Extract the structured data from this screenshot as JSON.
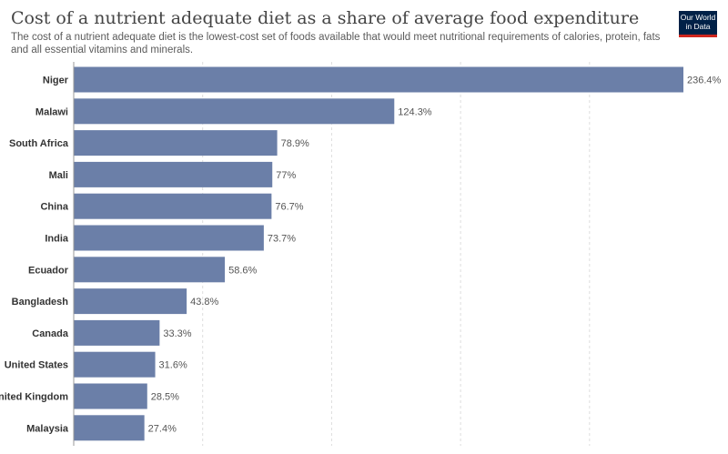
{
  "header": {
    "title": "Cost of a nutrient adequate diet as a share of average food expenditure",
    "subtitle": "The cost of a nutrient adequate diet is the lowest-cost set of foods available that would meet nutritional requirements of calories, protein, fats and all essential vitamins and minerals.",
    "logo_line1": "Our World",
    "logo_line2": "in Data"
  },
  "colors": {
    "bar": "#6b7fa8",
    "gridline": "#dddddd",
    "axis": "#999999"
  },
  "chart_data": {
    "type": "bar",
    "orientation": "horizontal",
    "categories": [
      "Niger",
      "Malawi",
      "South Africa",
      "Mali",
      "China",
      "India",
      "Ecuador",
      "Bangladesh",
      "Canada",
      "United States",
      "United Kingdom",
      "Malaysia"
    ],
    "values": [
      236.4,
      124.3,
      78.9,
      77,
      76.7,
      73.7,
      58.6,
      43.8,
      33.3,
      31.6,
      28.5,
      27.4
    ],
    "value_labels": [
      "236.4%",
      "124.3%",
      "78.9%",
      "77%",
      "76.7%",
      "73.7%",
      "58.6%",
      "43.8%",
      "33.3%",
      "31.6%",
      "28.5%",
      "27.4%"
    ],
    "xlim": [
      0,
      236.4
    ],
    "gridlines_at": [
      50,
      100,
      150,
      200
    ],
    "grid": true,
    "legend": "none"
  }
}
